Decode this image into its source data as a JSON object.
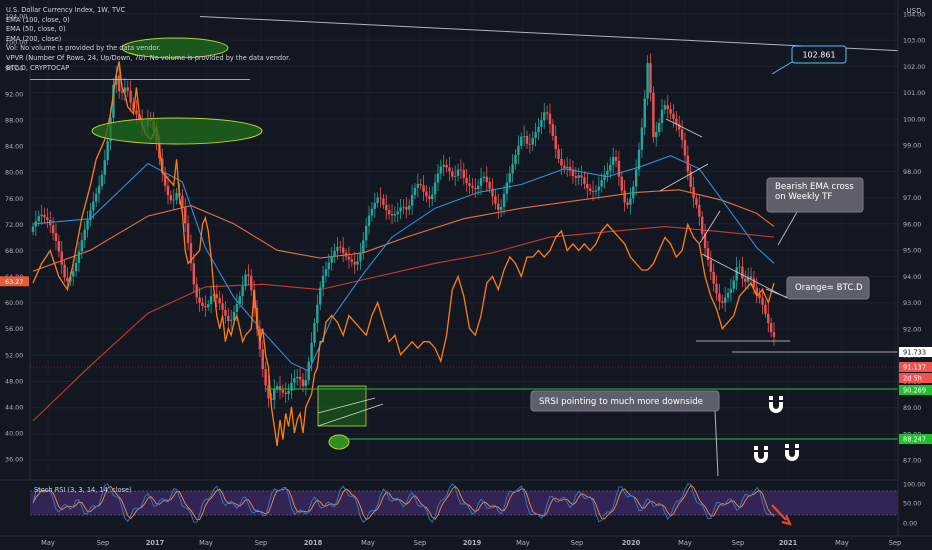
{
  "legend": [
    "U.S. Dollar Currency Index, 1W, TVC",
    "EMA (100, close, 0)",
    "EMA (50, close, 0)",
    "EMA (200, close)",
    "Vol: No volume is provided by the data vendor.",
    "VPVR (Number Of Rows, 24, Up/Down, 70): No volume is provided by the data vendor.",
    "BTC.D, CRYPTOCAP"
  ],
  "chart_data": {
    "type": "candlestick",
    "timeframe": "1W",
    "right_axis": {
      "label": "USD",
      "ticks": [
        "104.00",
        "103.00",
        "102.00",
        "101.00",
        "100.00",
        "99.00",
        "98.00",
        "97.00",
        "96.00",
        "95.00",
        "94.00",
        "93.00",
        "92.00",
        "91.00",
        "90.00",
        "89.00",
        "88.00",
        "87.00"
      ],
      "range": [
        86.4,
        104.3
      ]
    },
    "left_axis": {
      "ticks": [
        "104.00",
        "100.00",
        "96.00",
        "92.00",
        "88.00",
        "84.00",
        "80.00",
        "76.00",
        "72.00",
        "68.00",
        "64.00",
        "60.00",
        "56.00",
        "52.00",
        "48.00",
        "44.00",
        "40.00",
        "36.00"
      ],
      "range": [
        33.4,
        105.5
      ],
      "current_tag": "63.27"
    },
    "x_ticks": [
      "May",
      "Sep",
      "2017",
      "May",
      "Sep",
      "2018",
      "May",
      "Sep",
      "2019",
      "May",
      "Sep",
      "2020",
      "May",
      "Sep",
      "2021",
      "May",
      "Sep"
    ],
    "price_path": [
      [
        0,
        95.8
      ],
      [
        3,
        96.4
      ],
      [
        6,
        96.1
      ],
      [
        9,
        95.2
      ],
      [
        12,
        93.7
      ],
      [
        15,
        94.3
      ],
      [
        18,
        95.6
      ],
      [
        21,
        96.7
      ],
      [
        24,
        97.6
      ],
      [
        26,
        98.7
      ],
      [
        28,
        100.5
      ],
      [
        29,
        102.1
      ],
      [
        30,
        101.2
      ],
      [
        31,
        100.9
      ],
      [
        33,
        101.3
      ],
      [
        35,
        100.4
      ],
      [
        37,
        100.1
      ],
      [
        39,
        99.6
      ],
      [
        41,
        100.1
      ],
      [
        43,
        99.4
      ],
      [
        45,
        98.2
      ],
      [
        47,
        97.2
      ],
      [
        49,
        96.8
      ],
      [
        51,
        97.3
      ],
      [
        53,
        96.4
      ],
      [
        55,
        94.9
      ],
      [
        57,
        93.3
      ],
      [
        59,
        92.9
      ],
      [
        61,
        92.8
      ],
      [
        63,
        93.4
      ],
      [
        65,
        93.1
      ],
      [
        67,
        92.6
      ],
      [
        69,
        92.2
      ],
      [
        71,
        92.8
      ],
      [
        73,
        93.4
      ],
      [
        75,
        94.3
      ],
      [
        77,
        93.2
      ],
      [
        79,
        91.6
      ],
      [
        81,
        90.1
      ],
      [
        83,
        89.1
      ],
      [
        85,
        89.9
      ],
      [
        87,
        89.6
      ],
      [
        89,
        89.5
      ],
      [
        91,
        90.1
      ],
      [
        93,
        90.2
      ],
      [
        95,
        89.7
      ],
      [
        97,
        91.1
      ],
      [
        99,
        92.6
      ],
      [
        101,
        93.9
      ],
      [
        103,
        94.4
      ],
      [
        105,
        94.9
      ],
      [
        107,
        95.2
      ],
      [
        109,
        94.8
      ],
      [
        111,
        94.6
      ],
      [
        113,
        94.4
      ],
      [
        115,
        95.1
      ],
      [
        117,
        96.2
      ],
      [
        119,
        96.7
      ],
      [
        121,
        97.1
      ],
      [
        123,
        96.6
      ],
      [
        125,
        96.3
      ],
      [
        127,
        96.4
      ],
      [
        129,
        96.7
      ],
      [
        131,
        96.5
      ],
      [
        133,
        97.3
      ],
      [
        135,
        97.6
      ],
      [
        137,
        97.1
      ],
      [
        139,
        96.9
      ],
      [
        141,
        97.8
      ],
      [
        143,
        98.3
      ],
      [
        145,
        98.1
      ],
      [
        147,
        97.7
      ],
      [
        149,
        98.2
      ],
      [
        151,
        97.6
      ],
      [
        153,
        97.4
      ],
      [
        155,
        97.3
      ],
      [
        157,
        97.9
      ],
      [
        159,
        97.5
      ],
      [
        161,
        96.9
      ],
      [
        163,
        96.4
      ],
      [
        165,
        97.4
      ],
      [
        167,
        98.1
      ],
      [
        169,
        98.8
      ],
      [
        171,
        99.5
      ],
      [
        173,
        98.9
      ],
      [
        175,
        99.4
      ],
      [
        177,
        99.8
      ],
      [
        179,
        100.4
      ],
      [
        181,
        99.6
      ],
      [
        183,
        98.6
      ],
      [
        185,
        98.1
      ],
      [
        187,
        98.2
      ],
      [
        189,
        97.7
      ],
      [
        191,
        97.9
      ],
      [
        193,
        97.4
      ],
      [
        195,
        97.2
      ],
      [
        197,
        97.3
      ],
      [
        199,
        97.8
      ],
      [
        201,
        98.1
      ],
      [
        203,
        98.7
      ],
      [
        205,
        97.5
      ],
      [
        207,
        96.6
      ],
      [
        209,
        97.1
      ],
      [
        211,
        98.4
      ],
      [
        213,
        100.1
      ],
      [
        215,
        102.8
      ],
      [
        216,
        99.2
      ],
      [
        218,
        99.6
      ],
      [
        220,
        100.6
      ],
      [
        222,
        100.3
      ],
      [
        224,
        99.9
      ],
      [
        226,
        99.5
      ],
      [
        228,
        98.3
      ],
      [
        230,
        97.1
      ],
      [
        232,
        96.6
      ],
      [
        234,
        95.3
      ],
      [
        236,
        94.4
      ],
      [
        238,
        93.5
      ],
      [
        240,
        92.9
      ],
      [
        242,
        93.3
      ],
      [
        244,
        93.6
      ],
      [
        246,
        94.6
      ],
      [
        248,
        93.7
      ],
      [
        250,
        94.1
      ],
      [
        252,
        93.4
      ],
      [
        254,
        93.1
      ],
      [
        256,
        92.4
      ],
      [
        258,
        91.7
      ]
    ],
    "ema50_path": [
      [
        0,
        96.0
      ],
      [
        20,
        96.2
      ],
      [
        40,
        98.3
      ],
      [
        52,
        97.6
      ],
      [
        60,
        95.1
      ],
      [
        70,
        93.2
      ],
      [
        80,
        91.9
      ],
      [
        90,
        90.7
      ],
      [
        96,
        90.4
      ],
      [
        104,
        92.4
      ],
      [
        115,
        94.1
      ],
      [
        125,
        95.5
      ],
      [
        140,
        96.6
      ],
      [
        155,
        97.2
      ],
      [
        170,
        97.5
      ],
      [
        185,
        98.1
      ],
      [
        200,
        97.8
      ],
      [
        212,
        98.2
      ],
      [
        222,
        98.6
      ],
      [
        232,
        98.1
      ],
      [
        242,
        96.6
      ],
      [
        252,
        95.1
      ],
      [
        258,
        94.5
      ]
    ],
    "ema100_path": [
      [
        0,
        94.2
      ],
      [
        20,
        95.0
      ],
      [
        40,
        96.3
      ],
      [
        55,
        96.7
      ],
      [
        70,
        96.0
      ],
      [
        85,
        95.0
      ],
      [
        100,
        94.7
      ],
      [
        115,
        94.9
      ],
      [
        130,
        95.5
      ],
      [
        150,
        96.2
      ],
      [
        170,
        96.6
      ],
      [
        190,
        96.9
      ],
      [
        210,
        97.2
      ],
      [
        225,
        97.3
      ],
      [
        240,
        96.9
      ],
      [
        252,
        96.4
      ],
      [
        258,
        95.9
      ]
    ],
    "ema200_path": [
      [
        0,
        88.5
      ],
      [
        20,
        90.6
      ],
      [
        40,
        92.6
      ],
      [
        60,
        93.6
      ],
      [
        80,
        93.7
      ],
      [
        100,
        93.5
      ],
      [
        120,
        94.0
      ],
      [
        140,
        94.5
      ],
      [
        160,
        94.9
      ],
      [
        180,
        95.5
      ],
      [
        200,
        95.7
      ],
      [
        220,
        95.9
      ],
      [
        240,
        95.7
      ],
      [
        258,
        95.5
      ]
    ],
    "btcd_path": [
      [
        0,
        63
      ],
      [
        3,
        66
      ],
      [
        6,
        68
      ],
      [
        9,
        64
      ],
      [
        12,
        62
      ],
      [
        14,
        66
      ],
      [
        17,
        73
      ],
      [
        20,
        78
      ],
      [
        22,
        82
      ],
      [
        25,
        85
      ],
      [
        27,
        89
      ],
      [
        29,
        95
      ],
      [
        30,
        97
      ],
      [
        31,
        93
      ],
      [
        32,
        92
      ],
      [
        33,
        90
      ],
      [
        35,
        89
      ],
      [
        36,
        93
      ],
      [
        37,
        89
      ],
      [
        39,
        86
      ],
      [
        41,
        85
      ],
      [
        43,
        87
      ],
      [
        44,
        84
      ],
      [
        45,
        80
      ],
      [
        47,
        79
      ],
      [
        49,
        78
      ],
      [
        50,
        82
      ],
      [
        51,
        76
      ],
      [
        52,
        74
      ],
      [
        53,
        68
      ],
      [
        54,
        66
      ],
      [
        56,
        67
      ],
      [
        58,
        68
      ],
      [
        59,
        72
      ],
      [
        60,
        73
      ],
      [
        61,
        71
      ],
      [
        62,
        67
      ],
      [
        63,
        62
      ],
      [
        64,
        58
      ],
      [
        65,
        56
      ],
      [
        66,
        58
      ],
      [
        67,
        54
      ],
      [
        68,
        56
      ],
      [
        69,
        55
      ],
      [
        70,
        57
      ],
      [
        71,
        58
      ],
      [
        72,
        56
      ],
      [
        73,
        54
      ],
      [
        74,
        55
      ],
      [
        76,
        56
      ],
      [
        77,
        62
      ],
      [
        78,
        57
      ],
      [
        79,
        54
      ],
      [
        80,
        56
      ],
      [
        81,
        52
      ],
      [
        82,
        50
      ],
      [
        83,
        44
      ],
      [
        84,
        41
      ],
      [
        85,
        38
      ],
      [
        86,
        42
      ],
      [
        87,
        39
      ],
      [
        88,
        43
      ],
      [
        89,
        41
      ],
      [
        90,
        44
      ],
      [
        91,
        40
      ],
      [
        92,
        42
      ],
      [
        93,
        43
      ],
      [
        94,
        40
      ],
      [
        95,
        44
      ],
      [
        96,
        45
      ],
      [
        97,
        46
      ],
      [
        98,
        49
      ],
      [
        99,
        50
      ],
      [
        100,
        54
      ],
      [
        101,
        54
      ],
      [
        102,
        57
      ],
      [
        104,
        58
      ],
      [
        106,
        57
      ],
      [
        108,
        55
      ],
      [
        110,
        58
      ],
      [
        112,
        57
      ],
      [
        114,
        56
      ],
      [
        116,
        55
      ],
      [
        118,
        58
      ],
      [
        120,
        60
      ],
      [
        122,
        57
      ],
      [
        124,
        54
      ],
      [
        126,
        55
      ],
      [
        128,
        52
      ],
      [
        130,
        53
      ],
      [
        132,
        54
      ],
      [
        134,
        53
      ],
      [
        136,
        54
      ],
      [
        138,
        54
      ],
      [
        140,
        53
      ],
      [
        142,
        51
      ],
      [
        144,
        55
      ],
      [
        146,
        62
      ],
      [
        148,
        64
      ],
      [
        150,
        61
      ],
      [
        152,
        56
      ],
      [
        154,
        55
      ],
      [
        156,
        58
      ],
      [
        158,
        63
      ],
      [
        160,
        64
      ],
      [
        162,
        62
      ],
      [
        164,
        65
      ],
      [
        166,
        67
      ],
      [
        168,
        66
      ],
      [
        170,
        64
      ],
      [
        172,
        67
      ],
      [
        174,
        67
      ],
      [
        176,
        68
      ],
      [
        178,
        67
      ],
      [
        180,
        68
      ],
      [
        182,
        70
      ],
      [
        184,
        71
      ],
      [
        186,
        68
      ],
      [
        188,
        69
      ],
      [
        190,
        68
      ],
      [
        192,
        69
      ],
      [
        194,
        68
      ],
      [
        196,
        69
      ],
      [
        198,
        71
      ],
      [
        200,
        72
      ],
      [
        202,
        71
      ],
      [
        204,
        70
      ],
      [
        206,
        69
      ],
      [
        208,
        67
      ],
      [
        210,
        66
      ],
      [
        212,
        65
      ],
      [
        214,
        65
      ],
      [
        216,
        66
      ],
      [
        218,
        68
      ],
      [
        220,
        70
      ],
      [
        222,
        69
      ],
      [
        224,
        67
      ],
      [
        226,
        68
      ],
      [
        228,
        72
      ],
      [
        230,
        70
      ],
      [
        232,
        69
      ],
      [
        234,
        64
      ],
      [
        236,
        61
      ],
      [
        238,
        59
      ],
      [
        240,
        56
      ],
      [
        242,
        57
      ],
      [
        244,
        58
      ],
      [
        246,
        61
      ],
      [
        248,
        62
      ],
      [
        250,
        63
      ],
      [
        252,
        61
      ],
      [
        254,
        62
      ],
      [
        256,
        60
      ],
      [
        258,
        63
      ]
    ],
    "price_labels": [
      {
        "text": "102.861",
        "value": 102.861,
        "style": "callout"
      },
      {
        "text": "91.733",
        "value": 91.733,
        "style": "white"
      },
      {
        "text": "91.137",
        "value": 91.137,
        "style": "red"
      },
      {
        "text": "2d 5h",
        "value": 90.85,
        "style": "red-small"
      },
      {
        "text": "90.269",
        "value": 90.269,
        "style": "green"
      },
      {
        "text": "88.247",
        "value": 88.247,
        "style": "green"
      }
    ],
    "annotations": [
      {
        "text": "Bearish EMA cross\non Weekly TF"
      },
      {
        "text": "Orange= BTC.D"
      },
      {
        "text": "SRSI pointing to much more downside"
      }
    ],
    "indicator": {
      "title": "Stoch RSI (3, 3, 14, 14, close)",
      "ticks": [
        "100.00",
        "50.00",
        "0.00"
      ],
      "bands": [
        80,
        20
      ],
      "range": [
        0,
        100
      ]
    },
    "colors": {
      "background": "#131722",
      "up": "#26a69a",
      "down": "#ef5350",
      "btcd": "#ff7f0e",
      "ema50": "#2f8fd8",
      "ema100": "#e86f3a",
      "ema200": "#c93a2b",
      "green_level": "#20c030",
      "stoch_k": "#2d7fd1",
      "stoch_d": "#ff8a3d",
      "stoch_band": "#4a2d7a"
    }
  }
}
